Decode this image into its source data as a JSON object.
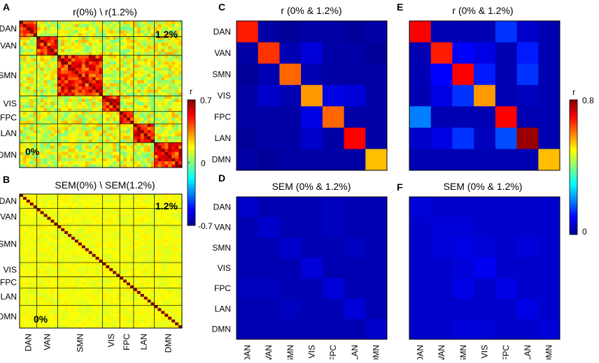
{
  "figure": {
    "network_labels": [
      "DAN",
      "VAN",
      "SMN",
      "VIS",
      "FPC",
      "LAN",
      "DMN"
    ],
    "panels": [
      {
        "letter": "A",
        "title": "r(0%) \\ r(1.2%)",
        "upper_label": "1.2%",
        "lower_label": "0%"
      },
      {
        "letter": "B",
        "title": "SEM(0%) \\ SEM(1.2%)",
        "upper_label": "1.2%",
        "lower_label": "0%"
      },
      {
        "letter": "C",
        "title": "r (0% & 1.2%)"
      },
      {
        "letter": "D",
        "title": "SEM (0% & 1.2%)"
      },
      {
        "letter": "E",
        "title": "r (0% & 1.2%)"
      },
      {
        "letter": "F",
        "title": "SEM (0% & 1.2%)"
      }
    ],
    "colorbar_left": {
      "label": "r",
      "ticks": [
        "0.7",
        "0",
        "-0.7"
      ]
    },
    "colorbar_right": {
      "label": "r",
      "ticks": [
        "0.8",
        "0"
      ]
    }
  },
  "chart_data": [
    {
      "type": "heatmap",
      "panel": "A",
      "title": "r(0%) \\ r(1.2%)",
      "description": "Region-level correlation matrix; lower triangle 0%, upper triangle 1.2%",
      "network_region_counts": [
        5,
        6,
        13,
        5,
        4,
        6,
        8
      ],
      "tick_labels": [
        "DAN",
        "VAN",
        "SMN",
        "VIS",
        "FPC",
        "LAN",
        "DMN"
      ],
      "clim": [
        -0.7,
        0.7
      ]
    },
    {
      "type": "heatmap",
      "panel": "B",
      "title": "SEM(0%) \\ SEM(1.2%)",
      "description": "Region-level SEM matrix; lower triangle 0%, upper triangle 1.2%",
      "network_region_counts": [
        5,
        6,
        13,
        5,
        4,
        6,
        8
      ],
      "tick_labels": [
        "DAN",
        "VAN",
        "SMN",
        "VIS",
        "FPC",
        "LAN",
        "DMN"
      ],
      "clim": [
        -0.7,
        0.7
      ]
    },
    {
      "type": "heatmap",
      "panel": "C",
      "title": "r (0% & 1.2%)",
      "rows": [
        "DAN",
        "VAN",
        "SMN",
        "VIS",
        "FPC",
        "LAN",
        "DMN"
      ],
      "cols": [
        "DAN",
        "VAN",
        "SMN",
        "VIS",
        "FPC",
        "LAN",
        "DMN"
      ],
      "values": [
        [
          0.68,
          0.03,
          0.02,
          0.03,
          0.03,
          0.02,
          0.03
        ],
        [
          0.03,
          0.66,
          0.04,
          0.07,
          0.03,
          0.03,
          0.02
        ],
        [
          0.02,
          0.04,
          0.62,
          0.04,
          0.03,
          0.03,
          0.03
        ],
        [
          0.03,
          0.06,
          0.04,
          0.58,
          0.08,
          0.07,
          0.03
        ],
        [
          0.03,
          0.03,
          0.03,
          0.08,
          0.62,
          0.03,
          0.03
        ],
        [
          0.02,
          0.03,
          0.03,
          0.06,
          0.03,
          0.7,
          0.03
        ],
        [
          0.03,
          0.02,
          0.03,
          0.03,
          0.03,
          0.03,
          0.55
        ]
      ],
      "clim": [
        0,
        0.8
      ]
    },
    {
      "type": "heatmap",
      "panel": "D",
      "title": "SEM (0% & 1.2%)",
      "rows": [
        "DAN",
        "VAN",
        "SMN",
        "VIS",
        "FPC",
        "LAN",
        "DMN"
      ],
      "cols": [
        "DAN",
        "VAN",
        "SMN",
        "VIS",
        "FPC",
        "LAN",
        "DMN"
      ],
      "values": [
        [
          0.06,
          0.04,
          0.04,
          0.04,
          0.05,
          0.04,
          0.04
        ],
        [
          0.04,
          0.06,
          0.04,
          0.04,
          0.05,
          0.04,
          0.04
        ],
        [
          0.04,
          0.04,
          0.06,
          0.04,
          0.04,
          0.05,
          0.04
        ],
        [
          0.04,
          0.04,
          0.04,
          0.07,
          0.04,
          0.04,
          0.04
        ],
        [
          0.05,
          0.05,
          0.04,
          0.04,
          0.07,
          0.04,
          0.04
        ],
        [
          0.04,
          0.04,
          0.05,
          0.04,
          0.04,
          0.07,
          0.04
        ],
        [
          0.04,
          0.04,
          0.04,
          0.04,
          0.04,
          0.04,
          0.06
        ]
      ],
      "clim": [
        0,
        0.8
      ]
    },
    {
      "type": "heatmap",
      "panel": "E",
      "title": "r (0% & 1.2%)",
      "rows": [
        "DAN",
        "VAN",
        "SMN",
        "VIS",
        "FPC",
        "LAN",
        "DMN"
      ],
      "cols": [
        "DAN",
        "VAN",
        "SMN",
        "VIS",
        "FPC",
        "LAN",
        "DMN"
      ],
      "values": [
        [
          0.7,
          0.04,
          0.04,
          0.04,
          0.14,
          0.06,
          0.04
        ],
        [
          0.04,
          0.68,
          0.1,
          0.08,
          0.04,
          0.12,
          0.04
        ],
        [
          0.04,
          0.1,
          0.7,
          0.12,
          0.04,
          0.14,
          0.04
        ],
        [
          0.04,
          0.08,
          0.14,
          0.58,
          0.04,
          0.05,
          0.04
        ],
        [
          0.2,
          0.04,
          0.04,
          0.04,
          0.7,
          0.04,
          0.04
        ],
        [
          0.06,
          0.08,
          0.14,
          0.05,
          0.16,
          0.78,
          0.04
        ],
        [
          0.04,
          0.04,
          0.04,
          0.04,
          0.04,
          0.04,
          0.55
        ]
      ],
      "clim": [
        0,
        0.8
      ]
    },
    {
      "type": "heatmap",
      "panel": "F",
      "title": "SEM (0% & 1.2%)",
      "rows": [
        "DAN",
        "VAN",
        "SMN",
        "VIS",
        "FPC",
        "LAN",
        "DMN"
      ],
      "cols": [
        "DAN",
        "VAN",
        "SMN",
        "VIS",
        "FPC",
        "LAN",
        "DMN"
      ],
      "values": [
        [
          0.07,
          0.06,
          0.06,
          0.06,
          0.06,
          0.06,
          0.06
        ],
        [
          0.06,
          0.07,
          0.07,
          0.06,
          0.06,
          0.06,
          0.06
        ],
        [
          0.06,
          0.07,
          0.08,
          0.07,
          0.06,
          0.07,
          0.06
        ],
        [
          0.06,
          0.06,
          0.07,
          0.09,
          0.06,
          0.06,
          0.06
        ],
        [
          0.06,
          0.06,
          0.08,
          0.06,
          0.08,
          0.06,
          0.06
        ],
        [
          0.06,
          0.06,
          0.06,
          0.06,
          0.06,
          0.08,
          0.06
        ],
        [
          0.06,
          0.06,
          0.07,
          0.07,
          0.06,
          0.06,
          0.07
        ]
      ],
      "clim": [
        0,
        0.8
      ]
    }
  ]
}
